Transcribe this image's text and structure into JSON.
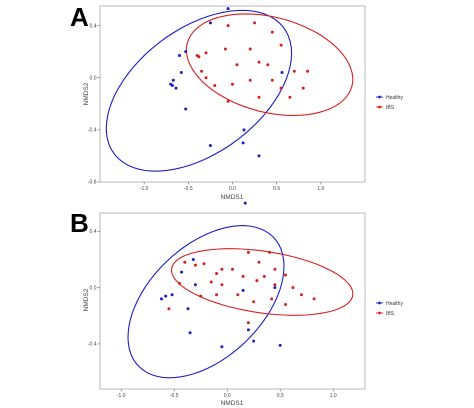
{
  "chart_data": [
    {
      "type": "scatter",
      "panel_label": "A",
      "xlabel": "NMDS1",
      "ylabel": "NMDS2",
      "xlim": [
        -1.5,
        1.5
      ],
      "ylim": [
        -0.8,
        0.55
      ],
      "xticks": [
        -1.0,
        -0.5,
        0.0,
        0.5,
        1.0
      ],
      "xtick_labels": [
        "-1.0",
        "-0.5",
        "0.0",
        "0.5",
        "1.0"
      ],
      "yticks": [
        -0.8,
        -0.4,
        0.0,
        0.4
      ],
      "ytick_labels": [
        "-0.8",
        "-0.4",
        "0.0",
        "0.4"
      ],
      "grid": false,
      "legend_position": "right",
      "series": [
        {
          "name": "Healthy",
          "color": "#1e1ec8",
          "points": [
            [
              -0.05,
              0.53
            ],
            [
              -0.25,
              0.42
            ],
            [
              -0.6,
              0.17
            ],
            [
              -0.53,
              0.2
            ],
            [
              -0.58,
              0.04
            ],
            [
              -0.67,
              -0.02
            ],
            [
              -0.68,
              -0.06
            ],
            [
              -0.7,
              -0.05
            ],
            [
              -0.64,
              -0.08
            ],
            [
              -0.53,
              -0.24
            ],
            [
              -0.25,
              -0.52
            ],
            [
              0.13,
              -0.4
            ],
            [
              0.12,
              -0.5
            ],
            [
              0.3,
              -0.6
            ],
            [
              0.56,
              0.04
            ]
          ],
          "ellipse": {
            "center": [
              -0.38,
              -0.1
            ],
            "rx": 1.1,
            "ry": 0.52,
            "angle_deg": 20
          }
        },
        {
          "name": "IBS",
          "color": "#d92020",
          "points": [
            [
              -0.05,
              0.4
            ],
            [
              0.25,
              0.42
            ],
            [
              0.45,
              0.35
            ],
            [
              0.55,
              0.25
            ],
            [
              -0.4,
              0.17
            ],
            [
              -0.38,
              0.16
            ],
            [
              -0.3,
              0.19
            ],
            [
              -0.08,
              0.22
            ],
            [
              0.2,
              0.22
            ],
            [
              0.05,
              0.1
            ],
            [
              0.3,
              0.12
            ],
            [
              0.4,
              0.1
            ],
            [
              -0.35,
              0.05
            ],
            [
              0.0,
              -0.05
            ],
            [
              0.2,
              -0.02
            ],
            [
              0.45,
              -0.02
            ],
            [
              0.7,
              0.05
            ],
            [
              0.85,
              0.05
            ],
            [
              -0.3,
              0.0
            ],
            [
              0.55,
              -0.08
            ],
            [
              0.8,
              -0.08
            ],
            [
              -0.05,
              -0.18
            ],
            [
              -0.2,
              -0.06
            ],
            [
              0.3,
              -0.15
            ],
            [
              0.65,
              -0.15
            ]
          ],
          "ellipse": {
            "center": [
              0.42,
              0.1
            ],
            "rx": 0.95,
            "ry": 0.37,
            "angle_deg": -8
          }
        }
      ]
    },
    {
      "type": "scatter",
      "panel_label": "B",
      "xlabel": "NMDS1",
      "ylabel": "NMDS2",
      "xlim": [
        -1.2,
        1.3
      ],
      "ylim": [
        -0.72,
        0.53
      ],
      "xticks": [
        -1.0,
        -0.5,
        0.0,
        0.5,
        1.0
      ],
      "xtick_labels": [
        "-1.0",
        "-0.5",
        "0.0",
        "0.5",
        "1.0"
      ],
      "yticks": [
        -0.4,
        0.0,
        0.4
      ],
      "ytick_labels": [
        "-0.4",
        "0.0",
        "0.4"
      ],
      "grid": false,
      "legend_position": "right",
      "series": [
        {
          "name": "Healthy",
          "color": "#1e1ec8",
          "points": [
            [
              0.17,
              0.6
            ],
            [
              -0.32,
              0.2
            ],
            [
              -0.3,
              0.02
            ],
            [
              -0.43,
              0.11
            ],
            [
              -0.37,
              -0.15
            ],
            [
              -0.52,
              -0.05
            ],
            [
              -0.58,
              -0.06
            ],
            [
              -0.62,
              -0.08
            ],
            [
              -0.35,
              -0.32
            ],
            [
              -0.05,
              -0.42
            ],
            [
              0.2,
              -0.3
            ],
            [
              0.25,
              -0.38
            ],
            [
              0.5,
              -0.41
            ],
            [
              0.45,
              0.0
            ],
            [
              0.15,
              -0.02
            ]
          ],
          "ellipse": {
            "center": [
              -0.2,
              -0.1
            ],
            "rx": 0.8,
            "ry": 0.44,
            "angle_deg": 28
          }
        },
        {
          "name": "IBS",
          "color": "#d92020",
          "points": [
            [
              -0.4,
              0.18
            ],
            [
              -0.3,
              0.16
            ],
            [
              -0.22,
              0.17
            ],
            [
              -0.1,
              0.1
            ],
            [
              -0.05,
              0.13
            ],
            [
              0.05,
              0.13
            ],
            [
              0.2,
              0.25
            ],
            [
              0.3,
              0.18
            ],
            [
              0.45,
              0.13
            ],
            [
              0.4,
              0.25
            ],
            [
              0.55,
              0.09
            ],
            [
              -0.45,
              0.03
            ],
            [
              -0.15,
              0.04
            ],
            [
              -0.05,
              0.02
            ],
            [
              0.15,
              0.08
            ],
            [
              0.28,
              0.05
            ],
            [
              0.35,
              0.08
            ],
            [
              0.45,
              0.02
            ],
            [
              0.62,
              0.0
            ],
            [
              0.7,
              -0.05
            ],
            [
              -0.25,
              -0.06
            ],
            [
              -0.1,
              -0.05
            ],
            [
              0.1,
              -0.05
            ],
            [
              0.25,
              -0.1
            ],
            [
              0.42,
              -0.08
            ],
            [
              0.55,
              -0.12
            ],
            [
              0.82,
              -0.08
            ],
            [
              -0.55,
              -0.15
            ],
            [
              0.2,
              -0.25
            ]
          ],
          "ellipse": {
            "center": [
              0.33,
              0.04
            ],
            "rx": 0.86,
            "ry": 0.22,
            "angle_deg": -6
          }
        }
      ]
    }
  ]
}
